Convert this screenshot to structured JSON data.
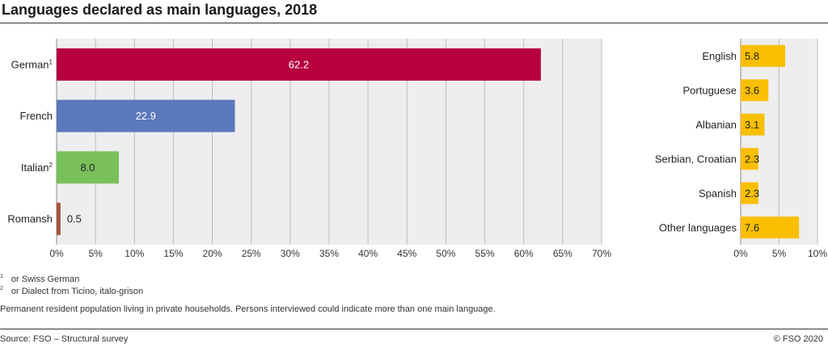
{
  "title": "Languages declared as main languages, 2018",
  "footnotes": [
    {
      "marker": "1",
      "text": "or Swiss German"
    },
    {
      "marker": "2",
      "text": "or Dialect from Ticino, italo-grison"
    }
  ],
  "note": "Permanent resident population living in private households. Persons interviewed could indicate more than one main language.",
  "source": "Source: FSO – Structural survey",
  "copyright": "© FSO 2020",
  "chart_data": [
    {
      "type": "bar",
      "orientation": "horizontal",
      "categories": [
        "German",
        "French",
        "Italian",
        "Romansh"
      ],
      "category_superscripts": [
        "1",
        "",
        "2",
        ""
      ],
      "values": [
        62.2,
        22.9,
        8.0,
        0.5
      ],
      "value_labels": [
        "62.2",
        "22.9",
        "8.0",
        "0.5"
      ],
      "colors": [
        "#b8003f",
        "#5b78bd",
        "#79c05b",
        "#a9523e"
      ],
      "label_colors": [
        "#ffffff",
        "#ffffff",
        "#222222",
        "#222222"
      ],
      "label_inside": [
        true,
        true,
        true,
        false
      ],
      "xlim": [
        0,
        70
      ],
      "xticks": [
        0,
        5,
        10,
        15,
        20,
        25,
        30,
        35,
        40,
        45,
        50,
        55,
        60,
        65,
        70
      ],
      "xtick_labels": [
        "0%",
        "5%",
        "10%",
        "15%",
        "20%",
        "25%",
        "30%",
        "35%",
        "40%",
        "45%",
        "50%",
        "55%",
        "60%",
        "65%",
        "70%"
      ],
      "grid": true,
      "background": "#eeeeee"
    },
    {
      "type": "bar",
      "orientation": "horizontal",
      "categories": [
        "English",
        "Portuguese",
        "Albanian",
        "Serbian, Croatian",
        "Spanish",
        "Other languages"
      ],
      "values": [
        5.8,
        3.6,
        3.1,
        2.3,
        2.3,
        7.6
      ],
      "value_labels": [
        "5.8",
        "3.6",
        "3.1",
        "2.3",
        "2.3",
        "7.6"
      ],
      "color": "#f9bf00",
      "xlim": [
        0,
        10
      ],
      "xticks": [
        0,
        5,
        10
      ],
      "xtick_labels": [
        "0%",
        "5%",
        "10%"
      ],
      "grid": true,
      "background": "#eeeeee"
    }
  ]
}
